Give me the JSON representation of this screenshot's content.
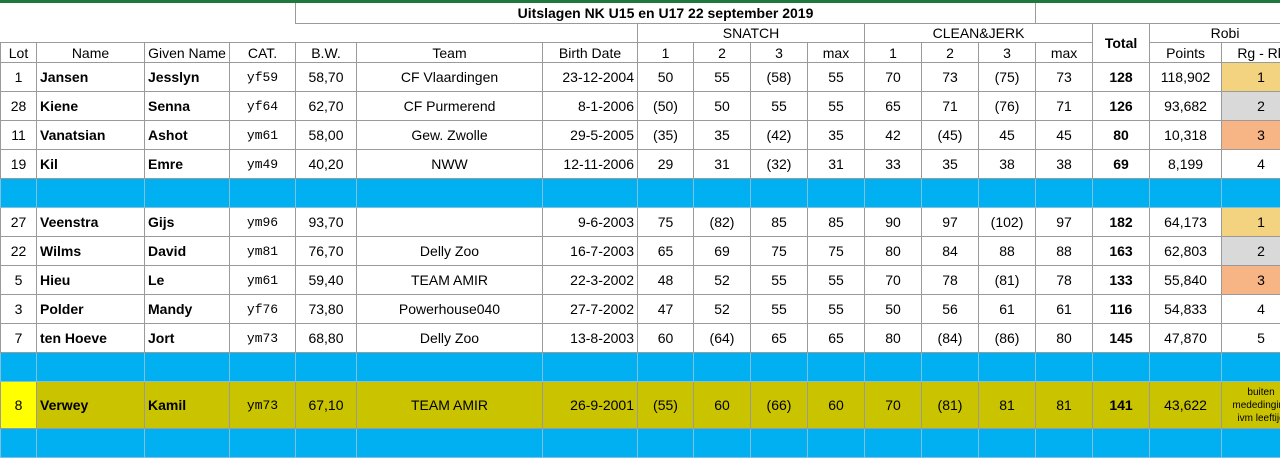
{
  "title": "Uitslagen NK U15 en U17 22 september 2019",
  "headers": {
    "lot": "Lot",
    "name": "Name",
    "given_name": "Given Name",
    "cat": "CAT.",
    "bw": "B.W.",
    "team": "Team",
    "birth_date": "Birth Date",
    "snatch": "SNATCH",
    "clean_jerk": "CLEAN&JERK",
    "total": "Total",
    "robi": "Robi",
    "a1": "1",
    "a2": "2",
    "a3": "3",
    "max": "max",
    "points": "Points",
    "rank": "Rg - Rk"
  },
  "group1": [
    {
      "lot": "1",
      "name": "Jansen",
      "given": "Jesslyn",
      "cat": "yf59",
      "bw": "58,70",
      "team": "CF Vlaardingen",
      "birth": "23-12-2004",
      "s1": "50",
      "s2": "55",
      "s3": "(58)",
      "smax": "55",
      "c1": "70",
      "c2": "73",
      "c3": "(75)",
      "cmax": "73",
      "total": "128",
      "points": "118,902",
      "rank": "1"
    },
    {
      "lot": "28",
      "name": "Kiene",
      "given": "Senna",
      "cat": "yf64",
      "bw": "62,70",
      "team": "CF Purmerend",
      "birth": "8-1-2006",
      "s1": "(50)",
      "s2": "50",
      "s3": "55",
      "smax": "55",
      "c1": "65",
      "c2": "71",
      "c3": "(76)",
      "cmax": "71",
      "total": "126",
      "points": "93,682",
      "rank": "2"
    },
    {
      "lot": "11",
      "name": "Vanatsian",
      "given": "Ashot",
      "cat": "ym61",
      "bw": "58,00",
      "team": "Gew. Zwolle",
      "birth": "29-5-2005",
      "s1": "(35)",
      "s2": "35",
      "s3": "(42)",
      "smax": "35",
      "c1": "42",
      "c2": "(45)",
      "c3": "45",
      "cmax": "45",
      "total": "80",
      "points": "10,318",
      "rank": "3"
    },
    {
      "lot": "19",
      "name": "Kil",
      "given": "Emre",
      "cat": "ym49",
      "bw": "40,20",
      "team": "NWW",
      "birth": "12-11-2006",
      "s1": "29",
      "s2": "31",
      "s3": "(32)",
      "smax": "31",
      "c1": "33",
      "c2": "35",
      "c3": "38",
      "cmax": "38",
      "total": "69",
      "points": "8,199",
      "rank": "4"
    }
  ],
  "group2": [
    {
      "lot": "27",
      "name": "Veenstra",
      "given": "Gijs",
      "cat": "ym96",
      "bw": "93,70",
      "team": "",
      "birth": "9-6-2003",
      "s1": "75",
      "s2": "(82)",
      "s3": "85",
      "smax": "85",
      "c1": "90",
      "c2": "97",
      "c3": "(102)",
      "cmax": "97",
      "total": "182",
      "points": "64,173",
      "rank": "1"
    },
    {
      "lot": "22",
      "name": "Wilms",
      "given": "David",
      "cat": "ym81",
      "bw": "76,70",
      "team": "Delly Zoo",
      "birth": "16-7-2003",
      "s1": "65",
      "s2": "69",
      "s3": "75",
      "smax": "75",
      "c1": "80",
      "c2": "84",
      "c3": "88",
      "cmax": "88",
      "total": "163",
      "points": "62,803",
      "rank": "2"
    },
    {
      "lot": "5",
      "name": "Hieu",
      "given": "Le",
      "cat": "ym61",
      "bw": "59,40",
      "team": "TEAM AMIR",
      "birth": "22-3-2002",
      "s1": "48",
      "s2": "52",
      "s3": "55",
      "smax": "55",
      "c1": "70",
      "c2": "78",
      "c3": "(81)",
      "cmax": "78",
      "total": "133",
      "points": "55,840",
      "rank": "3"
    },
    {
      "lot": "3",
      "name": "Polder",
      "given": "Mandy",
      "cat": "yf76",
      "bw": "73,80",
      "team": "Powerhouse040",
      "birth": "27-7-2002",
      "s1": "47",
      "s2": "52",
      "s3": "55",
      "smax": "55",
      "c1": "50",
      "c2": "56",
      "c3": "61",
      "cmax": "61",
      "total": "116",
      "points": "54,833",
      "rank": "4"
    },
    {
      "lot": "7",
      "name": "ten Hoeve",
      "given": "Jort",
      "cat": "ym73",
      "bw": "68,80",
      "team": "Delly Zoo",
      "birth": "13-8-2003",
      "s1": "60",
      "s2": "(64)",
      "s3": "65",
      "smax": "65",
      "c1": "80",
      "c2": "(84)",
      "c3": "(86)",
      "cmax": "80",
      "total": "145",
      "points": "47,870",
      "rank": "5"
    }
  ],
  "special": {
    "lot": "8",
    "name": "Verwey",
    "given": "Kamil",
    "cat": "ym73",
    "bw": "67,10",
    "team": "TEAM AMIR",
    "birth": "26-9-2001",
    "s1": "(55)",
    "s2": "60",
    "s3": "(66)",
    "smax": "60",
    "c1": "70",
    "c2": "(81)",
    "c3": "81",
    "cmax": "81",
    "total": "141",
    "points": "43,622",
    "note": "buiten mededinging ivm leeftijd"
  },
  "colors": {
    "spacer": "#00b0f0",
    "highlight_row": "#c9c300",
    "lot_highlight": "#ffff00",
    "rank1": "#f3d37f",
    "rank2": "#d9d9d9",
    "rank3": "#f7b586",
    "top_bar": "#1e7a3c"
  }
}
